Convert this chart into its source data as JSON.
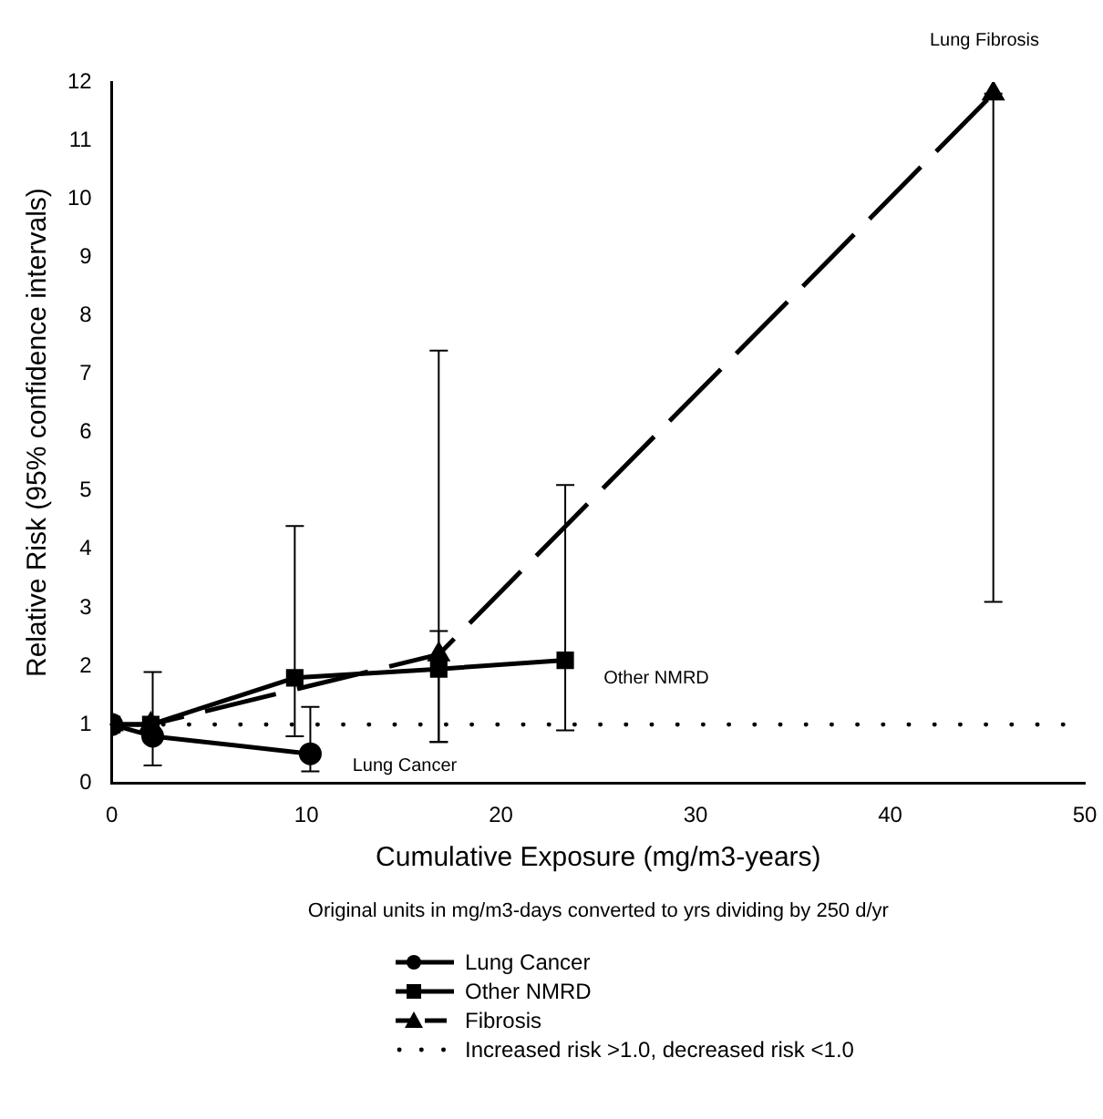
{
  "chart_data": {
    "type": "line",
    "xlabel": "Cumulative Exposure (mg/m3-years)",
    "ylabel": "Relative Risk (95% confidence intervals)",
    "xlim": [
      0,
      50
    ],
    "xticks": [
      0,
      10,
      20,
      30,
      40,
      50
    ],
    "ylim": [
      0,
      12
    ],
    "yticks": [
      0,
      1,
      2,
      3,
      4,
      5,
      6,
      7,
      8,
      9,
      10,
      11,
      12
    ],
    "grid": false,
    "legend": "bottom",
    "series": [
      {
        "name": "Lung Cancer",
        "color": "#000000",
        "marker": "circle",
        "line_style": "solid",
        "x": [
          0,
          2.1,
          10.2
        ],
        "values": [
          1,
          0.8,
          0.5
        ],
        "errors": [
          null,
          [
            0.3,
            1.9
          ],
          [
            0.2,
            1.3
          ]
        ]
      },
      {
        "name": "Other NMRD",
        "color": "#000000",
        "marker": "square",
        "line_style": "solid",
        "x": [
          0,
          2,
          9.4,
          16.8,
          23.3
        ],
        "values": [
          1,
          1,
          1.8,
          1.95,
          2.1
        ],
        "errors": [
          null,
          null,
          [
            0.8,
            4.4
          ],
          [
            0.7,
            2.6
          ],
          [
            0.9,
            5.1
          ]
        ]
      },
      {
        "name": "Fibrosis",
        "color": "#000000",
        "marker": "triangle",
        "line_style": "dashed",
        "x": [
          0,
          2,
          16.8,
          45.3
        ],
        "values": [
          1,
          1,
          2.2,
          11.8
        ],
        "errors": [
          null,
          null,
          [
            0.7,
            7.4
          ],
          [
            3.1,
            11.8
          ]
        ]
      }
    ],
    "ref_lines": [
      {
        "axis": "y",
        "value": 1,
        "label": "Increased risk >1.0, decreased risk <1.0",
        "line_style": "dotted",
        "color": "#000000"
      }
    ],
    "annotations": [
      "Lung Cancer",
      "Other NMRD",
      "Lung Fibrosis",
      "Original units in mg/m3-days converted to yrs dividing by 250 d/yr"
    ]
  }
}
